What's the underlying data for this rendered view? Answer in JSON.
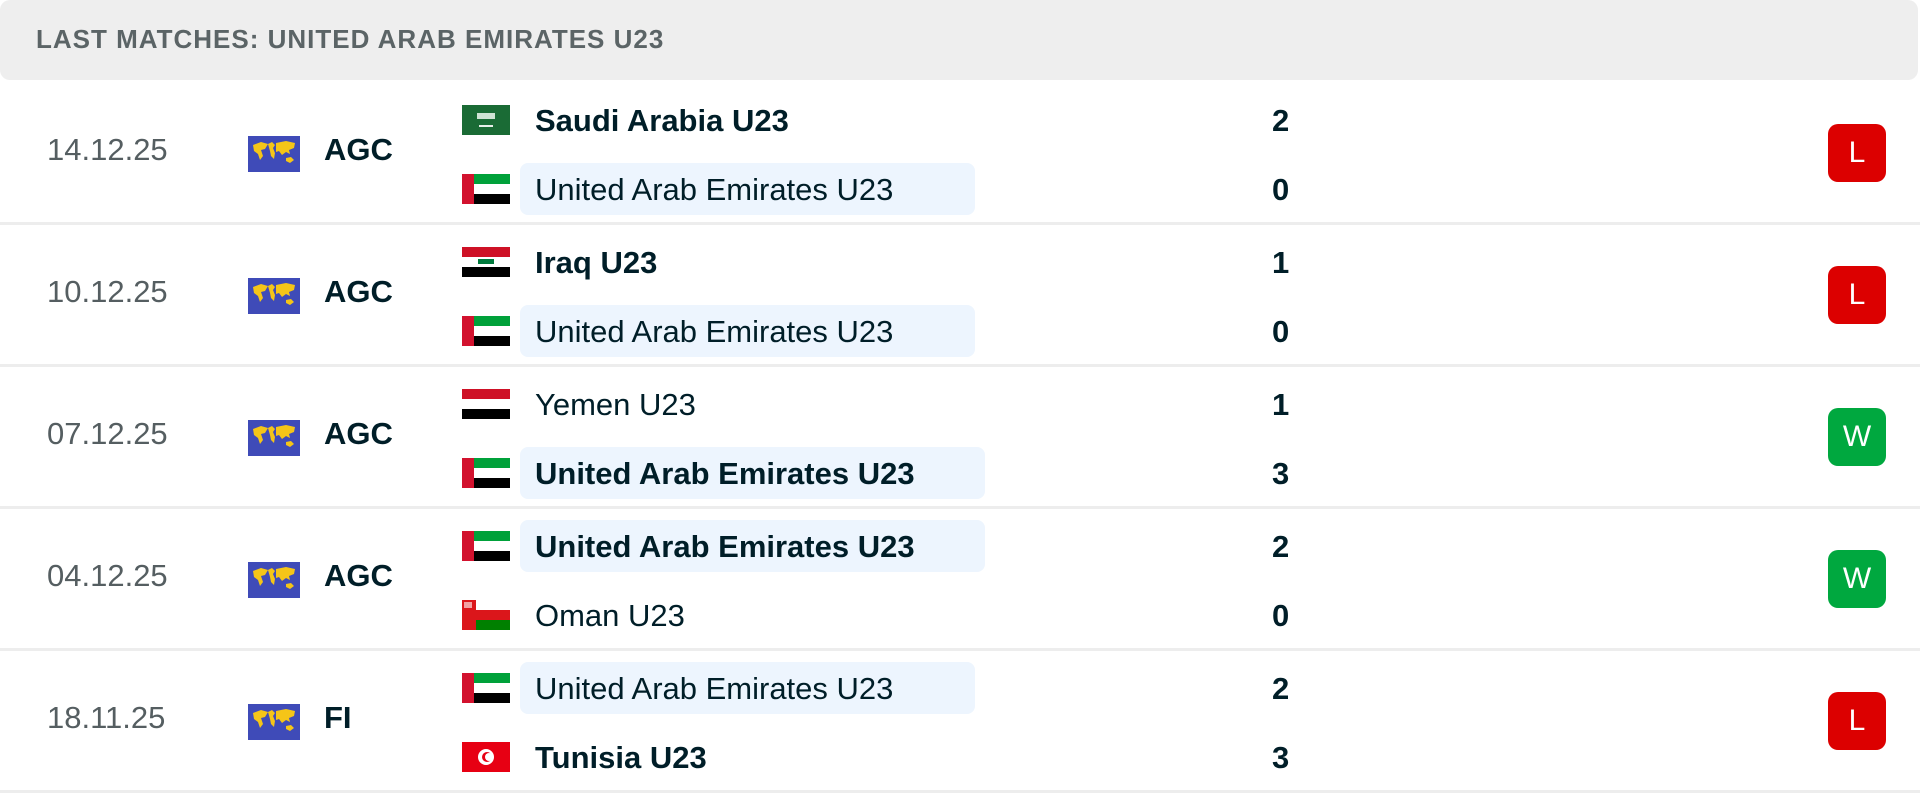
{
  "header": {
    "title": "LAST MATCHES: UNITED ARAB EMIRATES U23"
  },
  "colors": {
    "loss": "#dc0000",
    "win": "#00a83f",
    "highlight": "#edf5fe"
  },
  "matches": [
    {
      "date": "14.12.25",
      "competition": "AGC",
      "competition_icon": "world-map-icon",
      "home": {
        "name": "Saudi Arabia U23",
        "flag": "saudi-arabia",
        "score": "2",
        "bold": true,
        "highlight": false
      },
      "away": {
        "name": "United Arab Emirates U23",
        "flag": "uae",
        "score": "0",
        "bold": false,
        "highlight": true
      },
      "result": "L"
    },
    {
      "date": "10.12.25",
      "competition": "AGC",
      "competition_icon": "world-map-icon",
      "home": {
        "name": "Iraq U23",
        "flag": "iraq",
        "score": "1",
        "bold": true,
        "highlight": false
      },
      "away": {
        "name": "United Arab Emirates U23",
        "flag": "uae",
        "score": "0",
        "bold": false,
        "highlight": true
      },
      "result": "L"
    },
    {
      "date": "07.12.25",
      "competition": "AGC",
      "competition_icon": "world-map-icon",
      "home": {
        "name": "Yemen U23",
        "flag": "yemen",
        "score": "1",
        "bold": false,
        "highlight": false
      },
      "away": {
        "name": "United Arab Emirates U23",
        "flag": "uae",
        "score": "3",
        "bold": true,
        "highlight": true
      },
      "result": "W"
    },
    {
      "date": "04.12.25",
      "competition": "AGC",
      "competition_icon": "world-map-icon",
      "home": {
        "name": "United Arab Emirates U23",
        "flag": "uae",
        "score": "2",
        "bold": true,
        "highlight": true
      },
      "away": {
        "name": "Oman U23",
        "flag": "oman",
        "score": "0",
        "bold": false,
        "highlight": false
      },
      "result": "W"
    },
    {
      "date": "18.11.25",
      "competition": "FI",
      "competition_icon": "world-map-icon",
      "home": {
        "name": "United Arab Emirates U23",
        "flag": "uae",
        "score": "2",
        "bold": false,
        "highlight": true
      },
      "away": {
        "name": "Tunisia U23",
        "flag": "tunisia",
        "score": "3",
        "bold": true,
        "highlight": false
      },
      "result": "L"
    }
  ]
}
